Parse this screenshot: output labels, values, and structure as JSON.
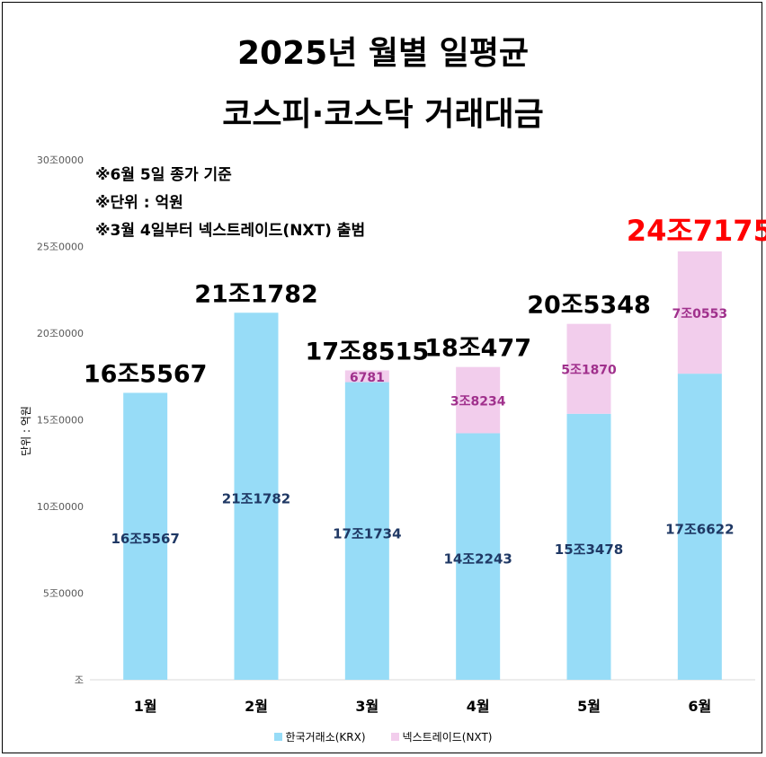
{
  "title_line1": "2025년 월별 일평균",
  "title_line2": "코스피·코스닥 거래대금",
  "notes": [
    "※6월 5일 종가 기준",
    "※단위 : 억원",
    "※3월 4일부터 넥스트레이드(NXT) 출범"
  ],
  "chart_data": {
    "type": "bar",
    "stacked": true,
    "title": "2025년 월별 일평균 코스피·코스닥 거래대금",
    "ylabel": "단위 : 억원",
    "xlabel": "",
    "ylim": [
      0,
      300000
    ],
    "yticks": [
      0,
      50000,
      100000,
      150000,
      200000,
      250000,
      300000
    ],
    "ytick_labels": [
      "조",
      "5조0000",
      "10조0000",
      "15조0000",
      "20조0000",
      "25조0000",
      "30조0000"
    ],
    "categories": [
      "1월",
      "2월",
      "3월",
      "4월",
      "5월",
      "6월"
    ],
    "series": [
      {
        "name": "한국거래소(KRX)",
        "color": "#97DCF7",
        "values": [
          165567,
          211782,
          171734,
          142243,
          153478,
          176622
        ],
        "labels": [
          "16조5567",
          "21조1782",
          "17조1734",
          "14조2243",
          "15조3478",
          "17조6622"
        ],
        "label_color": "#1F3864"
      },
      {
        "name": "넥스트레이드(NXT)",
        "color": "#F2CDEC",
        "values": [
          0,
          0,
          6781,
          38234,
          51870,
          70553
        ],
        "labels": [
          "",
          "",
          "6781",
          "3조8234",
          "5조1870",
          "7조0553"
        ],
        "label_color": "#A0308C"
      }
    ],
    "totals": [
      165567,
      211782,
      178515,
      180477,
      205348,
      247175
    ],
    "total_labels": [
      "16조5567",
      "21조1782",
      "17조8515",
      "18조477",
      "20조5348",
      "24조7175"
    ],
    "highlight_total_color": "#FF0000",
    "legend_position": "bottom",
    "grid": false
  }
}
